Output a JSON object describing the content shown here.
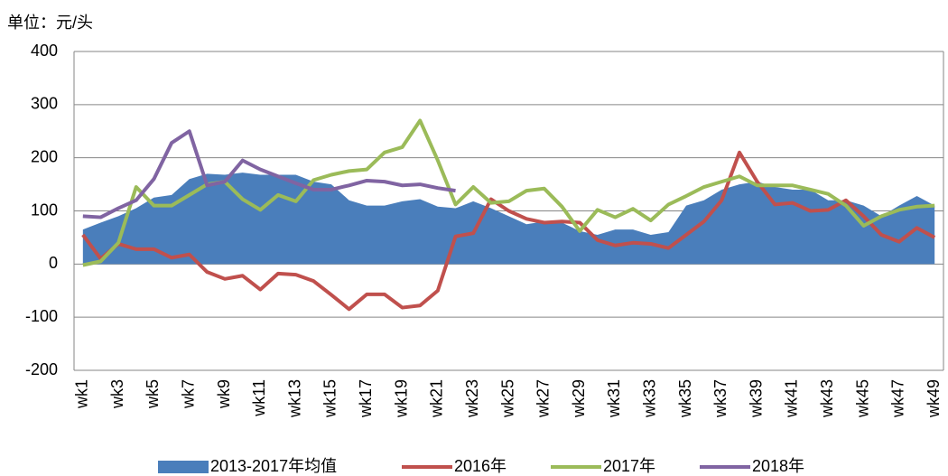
{
  "chart_data": {
    "type": "line",
    "unit_label": "单位：元/头",
    "categories": [
      "wk1",
      null,
      "wk3",
      null,
      "wk5",
      null,
      "wk7",
      null,
      "wk9",
      null,
      "wk11",
      null,
      "wk13",
      null,
      "wk15",
      null,
      "wk17",
      null,
      "wk19",
      null,
      "wk21",
      null,
      "wk23",
      null,
      "wk25",
      null,
      "wk27",
      null,
      "wk29",
      null,
      "wk31",
      null,
      "wk33",
      null,
      "wk35",
      null,
      "wk37",
      null,
      "wk39",
      null,
      "wk41",
      null,
      "wk43",
      null,
      "wk45",
      null,
      "wk47",
      null,
      "wk49"
    ],
    "series": [
      {
        "name": "2013-2017年均值",
        "style": "area",
        "color": "#4a7ebb",
        "values": [
          65,
          78,
          90,
          105,
          125,
          130,
          160,
          170,
          168,
          172,
          168,
          168,
          168,
          155,
          150,
          120,
          110,
          110,
          118,
          122,
          108,
          105,
          118,
          105,
          90,
          75,
          80,
          78,
          62,
          55,
          65,
          65,
          55,
          60,
          110,
          120,
          140,
          150,
          155,
          145,
          140,
          140,
          120,
          120,
          110,
          90,
          110,
          128,
          110
        ]
      },
      {
        "name": "2016年",
        "style": "line",
        "color": "#c0504d",
        "values": [
          55,
          10,
          38,
          28,
          28,
          12,
          18,
          -15,
          -28,
          -22,
          -48,
          -18,
          -20,
          -32,
          -58,
          -85,
          -57,
          -57,
          -82,
          -78,
          -50,
          52,
          58,
          122,
          100,
          85,
          78,
          80,
          78,
          45,
          35,
          40,
          38,
          30,
          55,
          80,
          120,
          210,
          155,
          112,
          115,
          100,
          102,
          120,
          90,
          55,
          42,
          68,
          50
        ]
      },
      {
        "name": "2017年",
        "style": "line",
        "color": "#9bbb59",
        "values": [
          -2,
          5,
          40,
          145,
          110,
          110,
          130,
          150,
          155,
          122,
          102,
          130,
          118,
          158,
          168,
          175,
          178,
          210,
          220,
          270,
          195,
          112,
          145,
          115,
          118,
          138,
          142,
          108,
          62,
          102,
          88,
          104,
          82,
          112,
          128,
          145,
          155,
          165,
          148,
          148,
          148,
          140,
          132,
          110,
          72,
          90,
          102,
          108,
          110
        ]
      },
      {
        "name": "2018年",
        "style": "line",
        "color": "#8064a2",
        "values": [
          90,
          88,
          105,
          120,
          160,
          228,
          250,
          148,
          155,
          195,
          178,
          165,
          152,
          140,
          140,
          148,
          157,
          155,
          148,
          150,
          143,
          138,
          null,
          null,
          null,
          null,
          null,
          null,
          null,
          null,
          null,
          null,
          null,
          null,
          null,
          null,
          null,
          null,
          null,
          null,
          null,
          null,
          null,
          null,
          null,
          null,
          null,
          null,
          null
        ]
      }
    ],
    "ylim": [
      -200,
      400
    ],
    "yticks": [
      -200,
      -100,
      0,
      100,
      200,
      300,
      400
    ],
    "grid": true,
    "legend": "bottom"
  }
}
